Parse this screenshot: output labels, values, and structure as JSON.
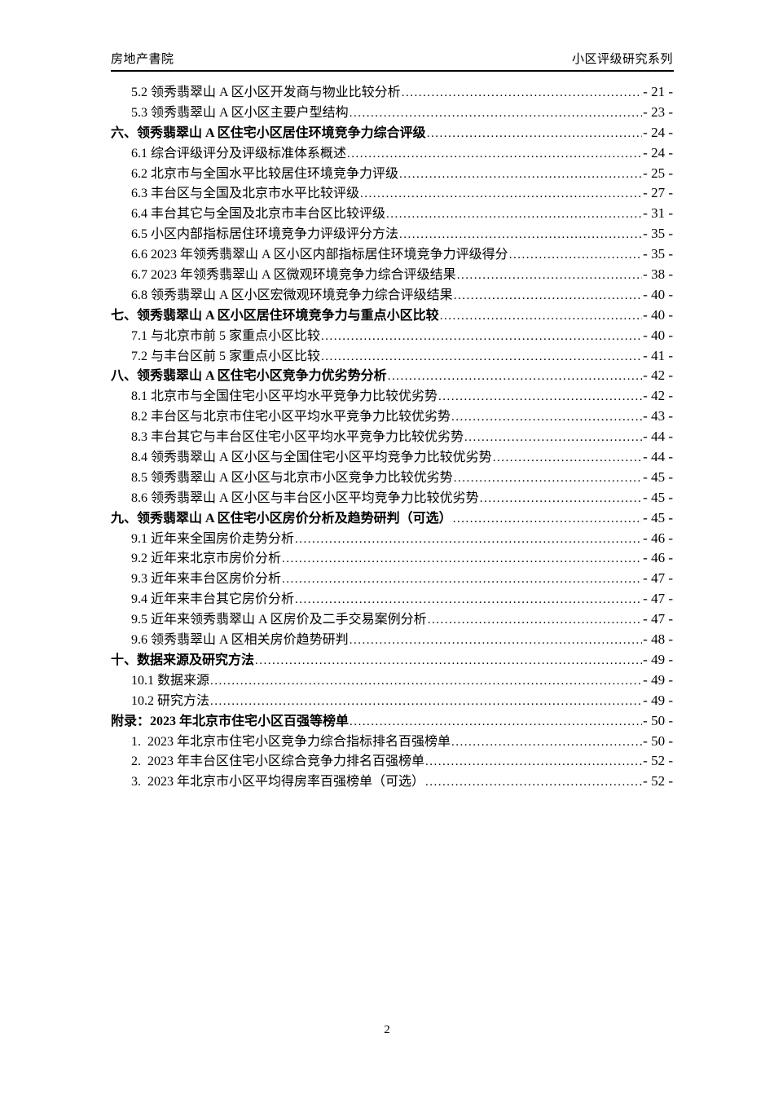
{
  "colors": {
    "text": "#000000",
    "background": "#ffffff",
    "header_rule": "#000000"
  },
  "header": {
    "left": "房地产書院",
    "right": "小区评级研究系列"
  },
  "toc": {
    "entries": [
      {
        "level": 2,
        "label": "5.2 领秀翡翠山 A 区小区开发商与物业比较分析",
        "page": "- 21 -"
      },
      {
        "level": 2,
        "label": "5.3 领秀翡翠山 A 区小区主要户型结构",
        "page": "- 23 -"
      },
      {
        "level": 1,
        "label": "六、领秀翡翠山 A 区住宅小区居住环境竞争力综合评级",
        "page": "- 24 -"
      },
      {
        "level": 2,
        "label": "6.1 综合评级评分及评级标准体系概述",
        "page": "- 24 -"
      },
      {
        "level": 2,
        "label": "6.2 北京市与全国水平比较居住环境竞争力评级",
        "page": "- 25 -"
      },
      {
        "level": 2,
        "label": "6.3 丰台区与全国及北京市水平比较评级",
        "page": "- 27 -"
      },
      {
        "level": 2,
        "label": "6.4 丰台其它与全国及北京市丰台区比较评级",
        "page": "- 31 -"
      },
      {
        "level": 2,
        "label": "6.5 小区内部指标居住环境竞争力评级评分方法",
        "page": "- 35 -"
      },
      {
        "level": 2,
        "label": "6.6 2023 年领秀翡翠山 A 区小区内部指标居住环境竞争力评级得分",
        "page": "- 35 -"
      },
      {
        "level": 2,
        "label": "6.7 2023 年领秀翡翠山 A 区微观环境竞争力综合评级结果",
        "page": "- 38 -"
      },
      {
        "level": 2,
        "label": "6.8 领秀翡翠山 A 区小区宏微观环境竞争力综合评级结果",
        "page": "- 40 -"
      },
      {
        "level": 1,
        "label": "七、领秀翡翠山 A 区小区居住环境竞争力与重点小区比较",
        "page": "- 40 -"
      },
      {
        "level": 2,
        "label": "7.1 与北京市前 5 家重点小区比较",
        "page": "- 40 -"
      },
      {
        "level": 2,
        "label": "7.2 与丰台区前 5 家重点小区比较",
        "page": "- 41 -"
      },
      {
        "level": 1,
        "label": "八、领秀翡翠山 A 区住宅小区竞争力优劣势分析",
        "page": "- 42 -"
      },
      {
        "level": 2,
        "label": "8.1 北京市与全国住宅小区平均水平竞争力比较优劣势",
        "page": "- 42 -"
      },
      {
        "level": 2,
        "label": "8.2 丰台区与北京市住宅小区平均水平竞争力比较优劣势",
        "page": "- 43 -"
      },
      {
        "level": 2,
        "label": "8.3 丰台其它与丰台区住宅小区平均水平竞争力比较优劣势",
        "page": "- 44 -"
      },
      {
        "level": 2,
        "label": "8.4 领秀翡翠山 A 区小区与全国住宅小区平均竞争力比较优劣势",
        "page": "- 44 -"
      },
      {
        "level": 2,
        "label": "8.5 领秀翡翠山 A 区小区与北京市小区竞争力比较优劣势",
        "page": "- 45 -"
      },
      {
        "level": 2,
        "label": "8.6 领秀翡翠山 A 区小区与丰台区小区平均竞争力比较优劣势",
        "page": "- 45 -"
      },
      {
        "level": 1,
        "label": "九、领秀翡翠山 A 区住宅小区房价分析及趋势研判（可选）",
        "page": "- 45 -"
      },
      {
        "level": 2,
        "label": "9.1 近年来全国房价走势分析",
        "page": "- 46 -"
      },
      {
        "level": 2,
        "label": "9.2 近年来北京市房价分析",
        "page": "- 46 -"
      },
      {
        "level": 2,
        "label": "9.3 近年来丰台区房价分析",
        "page": "- 47 -"
      },
      {
        "level": 2,
        "label": "9.4 近年来丰台其它房价分析",
        "page": "- 47 -"
      },
      {
        "level": 2,
        "label": "9.5 近年来领秀翡翠山 A 区房价及二手交易案例分析",
        "page": "- 47 -"
      },
      {
        "level": 2,
        "label": "9.6 领秀翡翠山 A 区相关房价趋势研判",
        "page": "- 48 -"
      },
      {
        "level": 1,
        "label": "十、数据来源及研究方法",
        "page": "- 49 -"
      },
      {
        "level": 2,
        "label": "10.1 数据来源",
        "page": "- 49 -"
      },
      {
        "level": 2,
        "label": "10.2 研究方法",
        "page": "- 49 -"
      },
      {
        "level": 1,
        "label": "附录：2023 年北京市住宅小区百强等榜单",
        "page": "- 50 -"
      },
      {
        "level": 2,
        "label": "1.  2023 年北京市住宅小区竞争力综合指标排名百强榜单",
        "page": "- 50 -"
      },
      {
        "level": 2,
        "label": "2.  2023 年丰台区住宅小区综合竞争力排名百强榜单",
        "page": "- 52 -"
      },
      {
        "level": 2,
        "label": "3.  2023 年北京市小区平均得房率百强榜单（可选）",
        "page": "- 52 -"
      }
    ]
  },
  "footer": {
    "page_number": "2"
  }
}
